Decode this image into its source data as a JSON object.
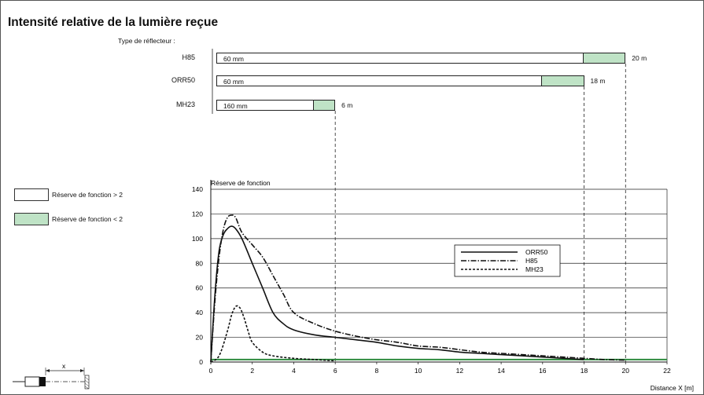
{
  "title": "Intensité relative de la lumière reçue",
  "reflector_type_label": "Type de réflecteur :",
  "reflectors": [
    {
      "name": "H85",
      "min_label": "60 mm",
      "max_label": "20 m",
      "white_end_m": 18,
      "max_m": 20
    },
    {
      "name": "ORR50",
      "min_label": "60 mm",
      "max_label": "18 m",
      "white_end_m": 16,
      "max_m": 18
    },
    {
      "name": "MH23",
      "min_label": "160 mm",
      "max_label": "6 m",
      "white_end_m": 5,
      "max_m": 6
    }
  ],
  "legend_boxes": [
    {
      "label": "Réserve de fonction > 2",
      "color": "#ffffff"
    },
    {
      "label": "Réserve de fonction < 2",
      "color": "#bfe3c6"
    }
  ],
  "sensor_label": "x",
  "chart_data": {
    "type": "line",
    "ylabel": "Réserve de fonction",
    "xlabel": "Distance X [m]",
    "xlim": [
      0,
      22
    ],
    "ylim": [
      0,
      140
    ],
    "xticks": [
      0,
      2,
      4,
      6,
      8,
      10,
      12,
      14,
      16,
      18,
      20,
      22
    ],
    "yticks": [
      0,
      20,
      40,
      60,
      80,
      100,
      120,
      140
    ],
    "grid": "horizontal",
    "legend_position": "center-right",
    "threshold_line": {
      "y": 2,
      "color": "#2e8b3e"
    },
    "series": [
      {
        "name": "ORR50",
        "style": "solid",
        "points": [
          [
            0,
            0
          ],
          [
            0.2,
            55
          ],
          [
            0.4,
            90
          ],
          [
            0.6,
            103
          ],
          [
            0.8,
            108
          ],
          [
            1.0,
            110
          ],
          [
            1.2,
            108
          ],
          [
            1.5,
            100
          ],
          [
            2.0,
            80
          ],
          [
            2.5,
            60
          ],
          [
            3.0,
            40
          ],
          [
            3.5,
            31
          ],
          [
            4.0,
            26
          ],
          [
            5.0,
            22
          ],
          [
            6.0,
            20
          ],
          [
            7.0,
            18
          ],
          [
            8.0,
            16
          ],
          [
            9.0,
            13
          ],
          [
            10.0,
            11
          ],
          [
            11.0,
            10
          ],
          [
            12.0,
            8
          ],
          [
            13.0,
            7
          ],
          [
            14.0,
            6
          ],
          [
            15.0,
            5
          ],
          [
            16.0,
            4
          ],
          [
            17.0,
            3
          ],
          [
            18.0,
            2
          ]
        ]
      },
      {
        "name": "H85",
        "style": "dashdot",
        "points": [
          [
            0,
            0
          ],
          [
            0.2,
            50
          ],
          [
            0.4,
            85
          ],
          [
            0.6,
            107
          ],
          [
            0.8,
            117
          ],
          [
            1.0,
            119
          ],
          [
            1.2,
            117
          ],
          [
            1.5,
            105
          ],
          [
            2.0,
            95
          ],
          [
            2.5,
            85
          ],
          [
            3.0,
            70
          ],
          [
            3.5,
            55
          ],
          [
            4.0,
            40
          ],
          [
            5.0,
            31
          ],
          [
            6.0,
            25
          ],
          [
            7.0,
            21
          ],
          [
            8.0,
            18
          ],
          [
            9.0,
            16
          ],
          [
            10.0,
            13
          ],
          [
            11.0,
            12
          ],
          [
            12.0,
            10
          ],
          [
            13.0,
            8
          ],
          [
            14.0,
            7
          ],
          [
            15.0,
            6
          ],
          [
            16.0,
            5
          ],
          [
            17.0,
            4
          ],
          [
            18.0,
            3
          ],
          [
            19.0,
            2
          ],
          [
            20.0,
            1.5
          ]
        ]
      },
      {
        "name": "MH23",
        "style": "dashed",
        "points": [
          [
            0,
            0
          ],
          [
            0.4,
            5
          ],
          [
            0.8,
            25
          ],
          [
            1.0,
            38
          ],
          [
            1.2,
            45
          ],
          [
            1.4,
            44
          ],
          [
            1.6,
            36
          ],
          [
            1.8,
            25
          ],
          [
            2.0,
            16
          ],
          [
            2.5,
            8
          ],
          [
            3.0,
            5
          ],
          [
            4.0,
            3
          ],
          [
            5.0,
            2
          ],
          [
            6.0,
            1
          ]
        ]
      }
    ]
  }
}
